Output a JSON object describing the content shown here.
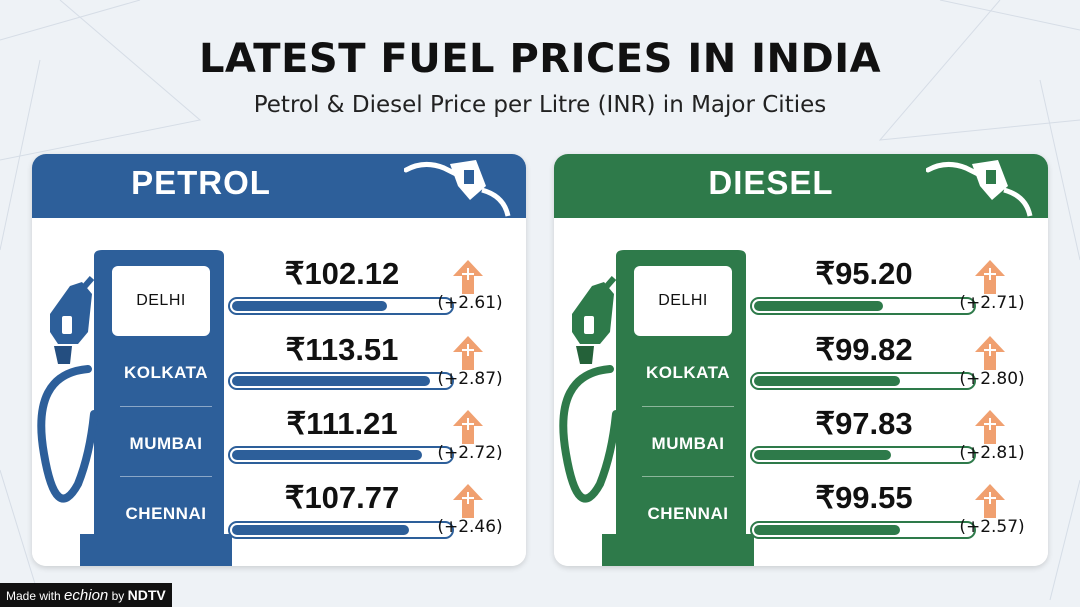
{
  "title": "LATEST FUEL PRICES IN INDIA",
  "subtitle": "Petrol & Diesel Price per Litre (INR) in Major Cities",
  "colors": {
    "petrol": "#2d5f9a",
    "petrol_dark": "#244e80",
    "diesel": "#2e7a4a",
    "diesel_dark": "#246139",
    "arrow": "#f0a070"
  },
  "panels": {
    "petrol": {
      "title": "PETROL",
      "rows": [
        {
          "city": "DELHI",
          "price": "₹102.12",
          "change": "(+2.61)",
          "level": 0.71
        },
        {
          "city": "KOLKATA",
          "price": "₹113.51",
          "change": "(+2.87)",
          "level": 0.91
        },
        {
          "city": "MUMBAI",
          "price": "₹111.21",
          "change": "(+2.72)",
          "level": 0.87
        },
        {
          "city": "CHENNAI",
          "price": "₹107.77",
          "change": "(+2.46)",
          "level": 0.81
        }
      ]
    },
    "diesel": {
      "title": "DIESEL",
      "rows": [
        {
          "city": "DELHI",
          "price": "₹95.20",
          "change": "(+2.71)",
          "level": 0.59
        },
        {
          "city": "KOLKATA",
          "price": "₹99.82",
          "change": "(+2.80)",
          "level": 0.67
        },
        {
          "city": "MUMBAI",
          "price": "₹97.83",
          "change": "(+2.81)",
          "level": 0.63
        },
        {
          "city": "CHENNAI",
          "price": "₹99.55",
          "change": "(+2.57)",
          "level": 0.67
        }
      ]
    }
  },
  "footer": {
    "made_with": "Made with",
    "brand": "echion",
    "by": "by",
    "ndtv": "NDTV"
  }
}
